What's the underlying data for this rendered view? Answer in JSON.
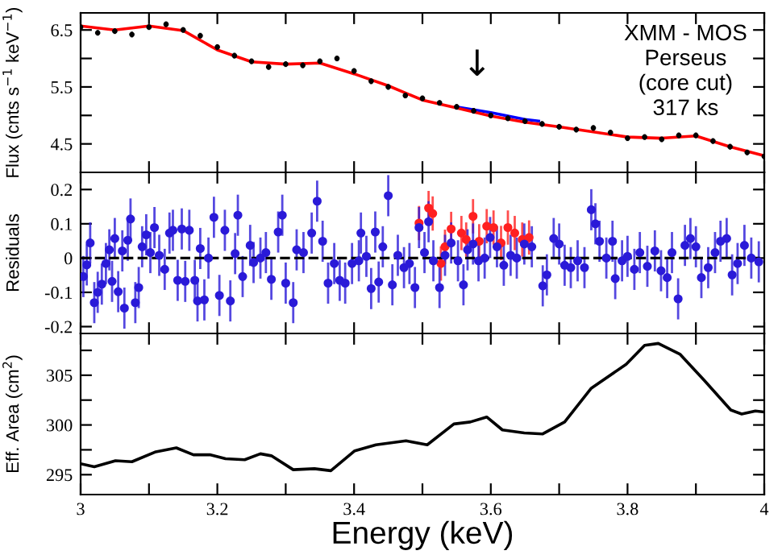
{
  "chart_data": [
    {
      "type": "scatter",
      "ylabel": "Flux (cnts s$^{−1}$ keV$^{−1}$)",
      "xlim": [
        3,
        4
      ],
      "ylim": [
        4.0,
        6.8
      ],
      "xticks": [
        3,
        {
          "value": 3.1,
          "label": null
        },
        3.2,
        {
          "value": 3.3,
          "label": null
        },
        3.4,
        {
          "value": 3.5,
          "label": null
        },
        3.6,
        {
          "value": 3.7,
          "label": null
        },
        3.8,
        {
          "value": 3.9,
          "label": null
        },
        4
      ],
      "yticks": [
        4.5,
        {
          "value": 5,
          "label": null
        },
        5.5,
        {
          "value": 6,
          "label": null
        },
        6.5
      ],
      "tick_labels": "y",
      "grid": false,
      "legend": false,
      "annotations": [
        "XMM - MOS\nPerseus\n(core cut)\n317 ks",
        "↓"
      ],
      "series": [
        {
          "color": "#000000",
          "x": [
            3.0,
            3.025,
            3.05,
            3.075,
            3.1,
            3.125,
            3.15,
            3.175,
            3.2,
            3.225,
            3.25,
            3.275,
            3.3,
            3.325,
            3.35,
            3.375,
            3.4,
            3.425,
            3.45,
            3.475,
            3.5,
            3.525,
            3.55,
            3.575,
            3.6,
            3.625,
            3.65,
            3.675,
            3.7,
            3.725,
            3.75,
            3.775,
            3.8,
            3.825,
            3.85,
            3.875,
            3.9,
            3.925,
            3.95,
            3.975,
            4.0
          ],
          "values": [
            6.55,
            6.45,
            6.48,
            6.42,
            6.55,
            6.6,
            6.5,
            6.4,
            6.2,
            6.05,
            5.95,
            5.85,
            5.9,
            5.88,
            5.95,
            6.0,
            5.78,
            5.6,
            5.5,
            5.35,
            5.3,
            5.22,
            5.15,
            5.08,
            5.0,
            4.95,
            4.9,
            4.85,
            4.8,
            4.75,
            4.78,
            4.7,
            4.6,
            4.62,
            4.58,
            4.65,
            4.65,
            4.55,
            4.45,
            4.35,
            4.28
          ],
          "errors": [
            0.05,
            0.05,
            0.05,
            0.05,
            0.05,
            0.05,
            0.05,
            0.05,
            0.05,
            0.05,
            0.05,
            0.05,
            0.05,
            0.05,
            0.05,
            0.05,
            0.05,
            0.05,
            0.05,
            0.05,
            0.05,
            0.05,
            0.05,
            0.05,
            0.05,
            0.05,
            0.05,
            0.05,
            0.05,
            0.05,
            0.05,
            0.05,
            0.05,
            0.05,
            0.05,
            0.05,
            0.05,
            0.05,
            0.05,
            0.05,
            0.05
          ]
        },
        {
          "type": "line",
          "color": "#0000ff",
          "x": [
            3.55,
            3.6,
            3.65,
            3.67
          ],
          "values": [
            5.15,
            5.05,
            4.93,
            4.9
          ]
        },
        {
          "type": "line",
          "color": "#ff0000",
          "x": [
            3.0,
            3.05,
            3.1,
            3.15,
            3.2,
            3.25,
            3.3,
            3.35,
            3.4,
            3.45,
            3.5,
            3.55,
            3.6,
            3.65,
            3.7,
            3.75,
            3.8,
            3.85,
            3.9,
            3.95,
            4.0
          ],
          "values": [
            6.57,
            6.5,
            6.57,
            6.49,
            6.15,
            5.94,
            5.9,
            5.92,
            5.73,
            5.52,
            5.27,
            5.13,
            4.99,
            4.88,
            4.8,
            4.71,
            4.62,
            4.6,
            4.64,
            4.45,
            4.29
          ]
        }
      ]
    },
    {
      "type": "scatter",
      "ylabel": "Residuals",
      "xlim": [
        3,
        4
      ],
      "ylim": [
        -0.22,
        0.25
      ],
      "xticks": [
        3,
        {
          "value": 3.1,
          "label": null
        },
        3.2,
        {
          "value": 3.3,
          "label": null
        },
        3.4,
        {
          "value": 3.5,
          "label": null
        },
        3.6,
        {
          "value": 3.7,
          "label": null
        },
        3.8,
        {
          "value": 3.9,
          "label": null
        },
        4
      ],
      "yticks": [
        -0.2,
        -0.1,
        0,
        0.1,
        0.2
      ],
      "tick_labels": "y",
      "grid": false,
      "legend": false,
      "marker": "circle",
      "ref_lines": [
        {
          "axis": "y",
          "value": 0,
          "label": null,
          "color": "#000000",
          "line_style": "dashed"
        }
      ],
      "series": [
        {
          "color": "#ff2020",
          "x": [
            3.495,
            3.509,
            3.515,
            3.527,
            3.533,
            3.542,
            3.557,
            3.564,
            3.574,
            3.583,
            3.594,
            3.604,
            3.615,
            3.625,
            3.635,
            3.646,
            3.656
          ],
          "values": [
            0.102,
            0.146,
            0.13,
            -0.016,
            0.033,
            0.085,
            0.073,
            0.054,
            0.122,
            0.049,
            0.093,
            0.089,
            0.044,
            0.089,
            0.073,
            0.054,
            0.06
          ],
          "errors": [
            0.05,
            0.05,
            0.05,
            0.05,
            0.05,
            0.05,
            0.05,
            0.05,
            0.05,
            0.05,
            0.05,
            0.05,
            0.05,
            0.05,
            0.05,
            0.05,
            0.05
          ]
        },
        {
          "color": "#2a1ad8",
          "x": [
            3.004,
            3.009,
            3.014,
            3.02,
            3.025,
            3.031,
            3.037,
            3.042,
            3.046,
            3.05,
            3.055,
            3.061,
            3.064,
            3.069,
            3.073,
            3.08,
            3.085,
            3.09,
            3.096,
            3.102,
            3.108,
            3.115,
            3.123,
            3.13,
            3.135,
            3.142,
            3.148,
            3.153,
            3.159,
            3.167,
            3.171,
            3.175,
            3.181,
            3.187,
            3.195,
            3.203,
            3.211,
            3.219,
            3.226,
            3.23,
            3.237,
            3.248,
            3.253,
            3.263,
            3.271,
            3.279,
            3.289,
            3.295,
            3.3,
            3.311,
            3.316,
            3.326,
            3.338,
            3.346,
            3.354,
            3.362,
            3.371,
            3.379,
            3.387,
            3.397,
            3.407,
            3.41,
            3.418,
            3.425,
            3.431,
            3.436,
            3.442,
            3.45,
            3.456,
            3.464,
            3.473,
            3.481,
            3.489,
            3.495,
            3.503,
            3.509,
            3.516,
            3.525,
            3.533,
            3.542,
            3.552,
            3.56,
            3.566,
            3.574,
            3.582,
            3.591,
            3.599,
            3.609,
            3.619,
            3.629,
            3.638,
            3.649,
            3.66,
            3.676,
            3.682,
            3.692,
            3.7,
            3.708,
            3.717,
            3.727,
            3.737,
            3.747,
            3.753,
            3.759,
            3.769,
            3.778,
            3.782,
            3.792,
            3.8,
            3.81,
            3.818,
            3.829,
            3.84,
            3.849,
            3.858,
            3.865,
            3.874,
            3.884,
            3.892,
            3.9,
            3.908,
            3.918,
            3.928,
            3.936,
            3.945,
            3.953,
            3.961,
            3.971,
            3.981,
            3.992
          ],
          "values": [
            -0.054,
            -0.02,
            0.044,
            -0.13,
            -0.1,
            -0.076,
            -0.016,
            0.024,
            -0.068,
            0.057,
            -0.098,
            0.021,
            -0.146,
            0.052,
            0.114,
            -0.13,
            -0.086,
            0.033,
            0.068,
            0.016,
            0.089,
            0.008,
            -0.033,
            0.073,
            0.081,
            -0.065,
            0.085,
            -0.068,
            0.081,
            -0.065,
            -0.125,
            0.028,
            -0.122,
            0,
            0.119,
            -0.109,
            0.081,
            -0.125,
            0.013,
            0.125,
            -0.054,
            0.037,
            -0.013,
            0,
            0.016,
            -0.062,
            0.076,
            0.125,
            -0.073,
            -0.13,
            0.024,
            0.016,
            0.073,
            0.166,
            0.049,
            -0.073,
            -0.016,
            -0.065,
            -0.073,
            -0.016,
            -0.008,
            0.073,
            0.005,
            -0.089,
            0.076,
            -0.07,
            0.033,
            0.182,
            -0.078,
            0.008,
            -0.028,
            -0.016,
            -0.086,
            0.089,
            0.016,
            0.106,
            -0.008,
            -0.086,
            0.008,
            0.044,
            -0.008,
            -0.078,
            0.024,
            0.041,
            -0.008,
            0,
            0.06,
            0.033,
            -0.021,
            0.008,
            0,
            0.041,
            0.033,
            -0.081,
            -0.049,
            0.057,
            0.041,
            -0.021,
            -0.028,
            -0.008,
            -0.028,
            0.141,
            0.1,
            0.049,
            0,
            0.049,
            -0.06,
            -0.008,
            0.005,
            -0.033,
            0.016,
            -0.024,
            0.021,
            -0.037,
            -0.057,
            0.016,
            -0.119,
            0.037,
            0.057,
            0.033,
            -0.057,
            -0.028,
            0.016,
            0.049,
            0.057,
            -0.049,
            -0.016,
            0.037,
            0,
            -0.011
          ],
          "errors": [
            0.06,
            0.06,
            0.06,
            0.06,
            0.06,
            0.06,
            0.06,
            0.06,
            0.06,
            0.06,
            0.06,
            0.06,
            0.06,
            0.06,
            0.06,
            0.06,
            0.06,
            0.06,
            0.06,
            0.06,
            0.06,
            0.06,
            0.06,
            0.06,
            0.06,
            0.06,
            0.06,
            0.06,
            0.06,
            0.06,
            0.06,
            0.06,
            0.06,
            0.06,
            0.06,
            0.06,
            0.06,
            0.06,
            0.06,
            0.06,
            0.06,
            0.06,
            0.06,
            0.06,
            0.06,
            0.06,
            0.06,
            0.06,
            0.06,
            0.06,
            0.06,
            0.06,
            0.06,
            0.06,
            0.06,
            0.06,
            0.06,
            0.06,
            0.06,
            0.06,
            0.06,
            0.06,
            0.06,
            0.06,
            0.06,
            0.06,
            0.06,
            0.06,
            0.06,
            0.06,
            0.06,
            0.06,
            0.06,
            0.06,
            0.06,
            0.06,
            0.06,
            0.06,
            0.06,
            0.06,
            0.06,
            0.06,
            0.06,
            0.06,
            0.06,
            0.06,
            0.06,
            0.06,
            0.06,
            0.06,
            0.06,
            0.06,
            0.06,
            0.06,
            0.06,
            0.06,
            0.06,
            0.06,
            0.06,
            0.06,
            0.06,
            0.06,
            0.06,
            0.06,
            0.06,
            0.06,
            0.06,
            0.06,
            0.06,
            0.06,
            0.06,
            0.06,
            0.06,
            0.06,
            0.06,
            0.06,
            0.06,
            0.06,
            0.06,
            0.06,
            0.06,
            0.06,
            0.06,
            0.06,
            0.06,
            0.06,
            0.06,
            0.06,
            0.06,
            0.06
          ]
        }
      ]
    },
    {
      "type": "line",
      "xlabel": "Energy (keV)",
      "ylabel": "Eff. Area (cm$^{2}$)",
      "xlim": [
        3,
        4
      ],
      "ylim": [
        293,
        309.2
      ],
      "xticks": [
        3,
        {
          "value": 3.1,
          "label": null
        },
        3.2,
        {
          "value": 3.3,
          "label": null
        },
        3.4,
        {
          "value": 3.5,
          "label": null
        },
        3.6,
        {
          "value": 3.7,
          "label": null
        },
        3.8,
        {
          "value": 3.9,
          "label": null
        },
        4
      ],
      "yticks": [
        295,
        {
          "value": 297.5,
          "label": null
        },
        300,
        {
          "value": 302.5,
          "label": null
        },
        305,
        {
          "value": 307.5,
          "label": null
        }
      ],
      "grid": false,
      "legend": false,
      "series": [
        {
          "color": "#000000",
          "x": [
            3.0,
            3.02,
            3.051,
            3.075,
            3.11,
            3.14,
            3.165,
            3.189,
            3.212,
            3.24,
            3.263,
            3.279,
            3.311,
            3.342,
            3.366,
            3.401,
            3.432,
            3.476,
            3.507,
            3.546,
            3.57,
            3.594,
            3.617,
            3.649,
            3.676,
            3.708,
            3.747,
            3.798,
            3.825,
            3.845,
            3.877,
            3.912,
            3.951,
            3.967,
            3.987,
            4.0
          ],
          "values": [
            296.1,
            295.8,
            296.4,
            296.3,
            297.3,
            297.7,
            297.0,
            297.0,
            296.6,
            296.5,
            297.1,
            296.9,
            295.5,
            295.6,
            295.4,
            297.4,
            298.0,
            298.4,
            298.0,
            300.1,
            300.3,
            300.8,
            299.5,
            299.2,
            299.1,
            300.3,
            303.7,
            306.1,
            308.0,
            308.2,
            307.1,
            304.5,
            301.5,
            301.1,
            301.4,
            301.3
          ]
        }
      ]
    }
  ]
}
